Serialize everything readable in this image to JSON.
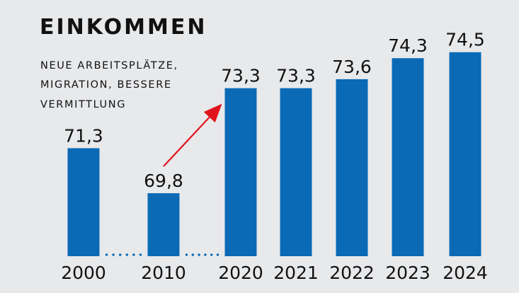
{
  "chart_data": {
    "type": "bar",
    "title": "EINKOMMEN",
    "subtitle_lines": [
      "NEUE ARBEITSPLÄTZE,",
      "MIGRATION, BESSERE",
      "VERMITTLUNG"
    ],
    "categories": [
      "2000",
      "2010",
      "2020",
      "2021",
      "2022",
      "2023",
      "2024"
    ],
    "values": [
      71.3,
      69.8,
      73.3,
      73.3,
      73.6,
      74.3,
      74.5
    ],
    "value_labels": [
      "71,3",
      "69,8",
      "73,3",
      "73,3",
      "73,6",
      "74,3",
      "74,5"
    ],
    "xlabel": "",
    "ylabel": "",
    "ylim": [
      67.7,
      74.73
    ],
    "grid": false,
    "legend": "none",
    "colors": {
      "bar": "#0a6ab6",
      "arrow": "#e0141c",
      "dots": "#0a6ab6",
      "background": "#e8e9eb"
    },
    "annotations": [
      {
        "type": "arrow",
        "from_category": "2010",
        "to_category": "2020"
      },
      {
        "type": "gap-dots",
        "between": [
          "2000",
          "2010"
        ]
      },
      {
        "type": "gap-dots",
        "between": [
          "2010",
          "2020"
        ]
      }
    ]
  }
}
